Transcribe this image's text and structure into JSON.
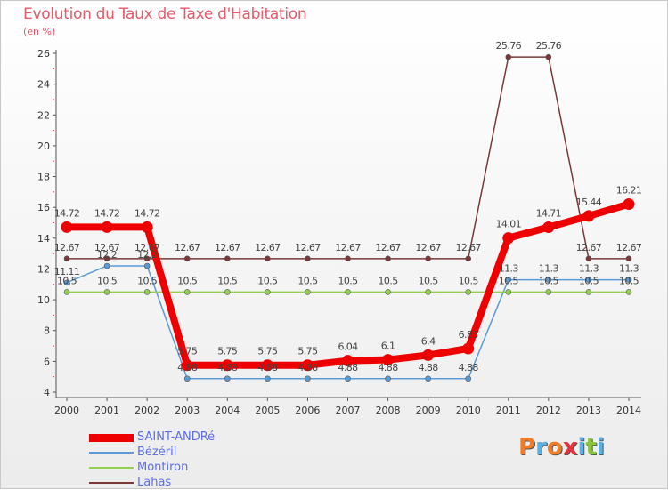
{
  "title": "Evolution du Taux de Taxe d'Habitation",
  "subtitle": "(en %)",
  "logo": {
    "letters": [
      "P",
      "r",
      "o",
      "x",
      "i",
      "t",
      "i"
    ],
    "colors": [
      "#f07c2a",
      "#5ab1e6",
      "#f07c2a",
      "#e6323c",
      "#5ab1e6",
      "#8cc63f",
      "#5ab1e6"
    ]
  },
  "chart_data": {
    "type": "line",
    "title": "Evolution du Taux de Taxe d'Habitation",
    "ylabel": "(en %)",
    "xlabel": "",
    "x": [
      "2000",
      "2001",
      "2002",
      "2003",
      "2004",
      "2005",
      "2006",
      "2007",
      "2008",
      "2009",
      "2010",
      "2011",
      "2012",
      "2013",
      "2014"
    ],
    "ylim": [
      4,
      26
    ],
    "yticks": [
      "4",
      "6",
      "8",
      "10",
      "12",
      "14",
      "16",
      "18",
      "20",
      "22",
      "24",
      "26"
    ],
    "grid": false,
    "legend_position": "bottom-left",
    "series": [
      {
        "name": "SAINT-ANDRé",
        "color": "#ee0000",
        "values": [
          14.72,
          14.72,
          14.72,
          5.75,
          5.75,
          5.75,
          5.75,
          6.04,
          6.1,
          6.4,
          6.83,
          14.01,
          14.71,
          15.44,
          16.21
        ],
        "labels": [
          "14.72",
          "14.72",
          "14.72",
          "5.75",
          "5.75",
          "5.75",
          "5.75",
          "6.04",
          "6.1",
          "6.4",
          "6.83",
          "14.01",
          "14.71",
          "15.44",
          "16.21"
        ]
      },
      {
        "name": "Bézéril",
        "color": "#5b9bd5",
        "values": [
          11.11,
          12.2,
          12.2,
          4.88,
          4.88,
          4.88,
          4.88,
          4.88,
          4.88,
          4.88,
          4.88,
          11.3,
          11.3,
          11.3,
          11.3
        ],
        "labels": [
          "11.11",
          "12.2",
          "12.2",
          "4.88",
          "4.88",
          "4.88",
          "4.88",
          "4.88",
          "4.88",
          "4.88",
          "4.88",
          "11.3",
          "11.3",
          "11.3",
          "11.3"
        ]
      },
      {
        "name": "Montiron",
        "color": "#92d050",
        "values": [
          10.5,
          10.5,
          10.5,
          10.5,
          10.5,
          10.5,
          10.5,
          10.5,
          10.5,
          10.5,
          10.5,
          10.5,
          10.5,
          10.5,
          10.5
        ],
        "labels": [
          "10.5",
          "10.5",
          "10.5",
          "10.5",
          "10.5",
          "10.5",
          "10.5",
          "10.5",
          "10.5",
          "10.5",
          "10.5",
          "10.5",
          "10.5",
          "10.5",
          "10.5"
        ]
      },
      {
        "name": "Lahas",
        "color": "#7b3838",
        "values": [
          12.67,
          12.67,
          12.67,
          12.67,
          12.67,
          12.67,
          12.67,
          12.67,
          12.67,
          12.67,
          12.67,
          25.76,
          25.76,
          12.67,
          12.67
        ],
        "labels": [
          "12.67",
          "12.67",
          "12.67",
          "12.67",
          "12.67",
          "12.67",
          "12.67",
          "12.67",
          "12.67",
          "12.67",
          "12.67",
          "25.76",
          "25.76",
          "12.67",
          "12.67"
        ]
      }
    ]
  }
}
